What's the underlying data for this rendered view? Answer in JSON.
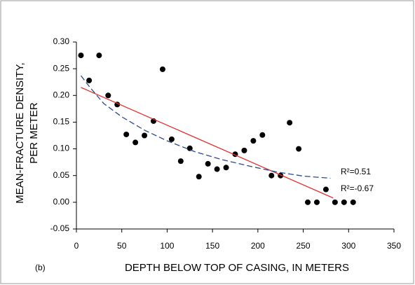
{
  "chart_data": {
    "type": "scatter",
    "xlabel": "DEPTH BELOW TOP OF CASING, IN METERS",
    "ylabel": [
      "MEAN-FRACTURE DENSITY,",
      "PER METER"
    ],
    "panel_label": "(b)",
    "xlim": [
      0,
      350
    ],
    "xticks": [
      0,
      50,
      100,
      150,
      200,
      250,
      300,
      350
    ],
    "ylim": [
      -0.05,
      0.3
    ],
    "yticks": [
      -0.05,
      {
        "value": 0,
        "label": "0.00"
      },
      0.05,
      {
        "value": 0.1,
        "label": "0.10"
      },
      0.15,
      {
        "value": 0.2,
        "label": "0.20"
      },
      0.25,
      {
        "value": 0.3,
        "label": "0.30"
      }
    ],
    "series": [
      {
        "color": "#000000",
        "x": [
          5,
          14,
          25,
          35,
          45,
          55,
          65,
          75,
          85,
          95,
          105,
          115,
          125,
          135,
          145,
          155,
          165,
          175,
          185,
          195,
          205,
          215,
          225,
          235,
          245,
          255,
          265,
          275,
          285,
          295,
          305
        ],
        "values": [
          0.275,
          0.228,
          0.275,
          0.2,
          0.183,
          0.127,
          0.112,
          0.125,
          0.152,
          0.249,
          0.118,
          0.077,
          0.101,
          0.048,
          0.072,
          0.062,
          0.065,
          0.09,
          0.097,
          0.115,
          0.126,
          0.05,
          0.05,
          0.149,
          0.1,
          0,
          0,
          0.024,
          0,
          0,
          0
        ]
      }
    ],
    "trendlines": [
      {
        "color": "#e03030",
        "style": "solid",
        "x": [
          5,
          283
        ],
        "values": [
          0.215,
          0.008
        ]
      },
      {
        "color": "#2a4a8a",
        "style": "dashed",
        "x": [
          5,
          15,
          30,
          50,
          75,
          100,
          130,
          160,
          190,
          220,
          250,
          280
        ],
        "values": [
          0.237,
          0.215,
          0.185,
          0.16,
          0.135,
          0.115,
          0.095,
          0.08,
          0.068,
          0.057,
          0.049,
          0.045
        ]
      }
    ],
    "annotations": [
      "R²=0.51",
      "R²=-0.67"
    ]
  }
}
